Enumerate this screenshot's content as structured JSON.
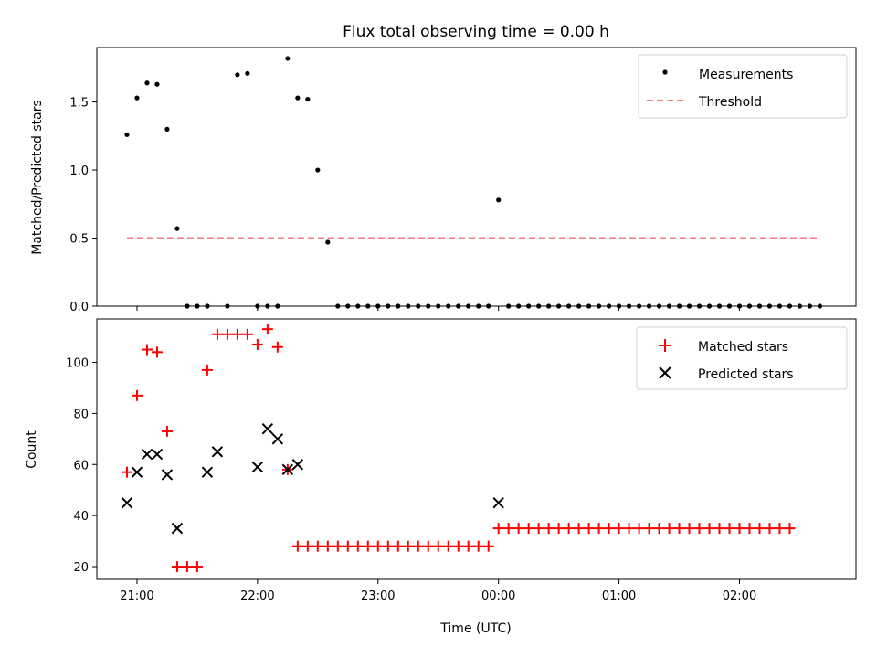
{
  "chart_data": [
    {
      "type": "scatter",
      "title": "Flux total observing time = 0.00 h",
      "ylabel": "Matched/Predicted stars",
      "ylim": [
        0,
        1.9
      ],
      "yticks": [
        0.0,
        0.5,
        1.0,
        1.5
      ],
      "ytick_labels": [
        "0.0",
        "0.5",
        "1.0",
        "1.5"
      ],
      "xlim": [
        "20:40",
        "02:58"
      ],
      "legend_loc": "upper right",
      "series": [
        {
          "name": "Measurements",
          "marker": "dot",
          "color": "#000000",
          "points": [
            [
              "20:55",
              1.26
            ],
            [
              "21:00",
              1.53
            ],
            [
              "21:05",
              1.64
            ],
            [
              "21:10",
              1.63
            ],
            [
              "21:15",
              1.3
            ],
            [
              "21:20",
              0.57
            ],
            [
              "21:25",
              0
            ],
            [
              "21:30",
              0
            ],
            [
              "21:35",
              0
            ],
            [
              "21:45",
              0
            ],
            [
              "21:50",
              1.7
            ],
            [
              "21:55",
              1.71
            ],
            [
              "22:00",
              0
            ],
            [
              "22:05",
              0
            ],
            [
              "22:10",
              0
            ],
            [
              "22:15",
              1.82
            ],
            [
              "22:20",
              1.53
            ],
            [
              "22:25",
              1.52
            ],
            [
              "22:30",
              1.0
            ],
            [
              "22:35",
              0.47
            ],
            [
              "22:40",
              0
            ],
            [
              "22:45",
              0
            ],
            [
              "22:50",
              0
            ],
            [
              "22:55",
              0
            ],
            [
              "23:00",
              0
            ],
            [
              "23:05",
              0
            ],
            [
              "23:10",
              0
            ],
            [
              "23:15",
              0
            ],
            [
              "23:20",
              0
            ],
            [
              "23:25",
              0
            ],
            [
              "23:30",
              0
            ],
            [
              "23:35",
              0
            ],
            [
              "23:40",
              0
            ],
            [
              "23:45",
              0
            ],
            [
              "23:50",
              0
            ],
            [
              "23:55",
              0
            ],
            [
              "00:00",
              0.78
            ],
            [
              "00:05",
              0
            ],
            [
              "00:10",
              0
            ],
            [
              "00:15",
              0
            ],
            [
              "00:20",
              0
            ],
            [
              "00:25",
              0
            ],
            [
              "00:30",
              0
            ],
            [
              "00:35",
              0
            ],
            [
              "00:40",
              0
            ],
            [
              "00:45",
              0
            ],
            [
              "00:50",
              0
            ],
            [
              "00:55",
              0
            ],
            [
              "01:00",
              0
            ],
            [
              "01:05",
              0
            ],
            [
              "01:10",
              0
            ],
            [
              "01:15",
              0
            ],
            [
              "01:20",
              0
            ],
            [
              "01:25",
              0
            ],
            [
              "01:30",
              0
            ],
            [
              "01:35",
              0
            ],
            [
              "01:40",
              0
            ],
            [
              "01:45",
              0
            ],
            [
              "01:50",
              0
            ],
            [
              "01:55",
              0
            ],
            [
              "02:00",
              0
            ],
            [
              "02:05",
              0
            ],
            [
              "02:10",
              0
            ],
            [
              "02:15",
              0
            ],
            [
              "02:20",
              0
            ],
            [
              "02:25",
              0
            ],
            [
              "02:30",
              0
            ],
            [
              "02:35",
              0
            ],
            [
              "02:40",
              0
            ]
          ]
        },
        {
          "name": "Threshold",
          "style": "dashed-line",
          "color": "#f08080",
          "points": [
            [
              "20:55",
              0.5
            ],
            [
              "02:40",
              0.5
            ]
          ]
        }
      ]
    },
    {
      "type": "scatter",
      "xlabel": "Time (UTC)",
      "ylabel": "Count",
      "ylim": [
        15,
        117
      ],
      "yticks": [
        20,
        40,
        60,
        80,
        100
      ],
      "ytick_labels": [
        "20",
        "40",
        "60",
        "80",
        "100"
      ],
      "xlim": [
        "20:40",
        "02:58"
      ],
      "xticks": [
        "21:00",
        "22:00",
        "23:00",
        "00:00",
        "01:00",
        "02:00"
      ],
      "xtick_labels": [
        "21:00",
        "22:00",
        "23:00",
        "00:00",
        "01:00",
        "02:00"
      ],
      "legend_loc": "upper right",
      "series": [
        {
          "name": "Matched stars",
          "marker": "plus",
          "color": "#ff0000",
          "points": [
            [
              "20:55",
              57
            ],
            [
              "21:00",
              87
            ],
            [
              "21:05",
              105
            ],
            [
              "21:10",
              104
            ],
            [
              "21:15",
              73
            ],
            [
              "21:20",
              20
            ],
            [
              "21:25",
              20
            ],
            [
              "21:30",
              20
            ],
            [
              "21:35",
              97
            ],
            [
              "21:40",
              111
            ],
            [
              "21:45",
              111
            ],
            [
              "21:50",
              111
            ],
            [
              "21:55",
              111
            ],
            [
              "22:00",
              107
            ],
            [
              "22:05",
              113
            ],
            [
              "22:10",
              106
            ],
            [
              "22:15",
              58
            ],
            [
              "22:20",
              28
            ],
            [
              "22:25",
              28
            ],
            [
              "22:30",
              28
            ],
            [
              "22:35",
              28
            ],
            [
              "22:40",
              28
            ],
            [
              "22:45",
              28
            ],
            [
              "22:50",
              28
            ],
            [
              "22:55",
              28
            ],
            [
              "23:00",
              28
            ],
            [
              "23:05",
              28
            ],
            [
              "23:10",
              28
            ],
            [
              "23:15",
              28
            ],
            [
              "23:20",
              28
            ],
            [
              "23:25",
              28
            ],
            [
              "23:30",
              28
            ],
            [
              "23:35",
              28
            ],
            [
              "23:40",
              28
            ],
            [
              "23:45",
              28
            ],
            [
              "23:50",
              28
            ],
            [
              "23:55",
              28
            ],
            [
              "00:00",
              35
            ],
            [
              "00:05",
              35
            ],
            [
              "00:10",
              35
            ],
            [
              "00:15",
              35
            ],
            [
              "00:20",
              35
            ],
            [
              "00:25",
              35
            ],
            [
              "00:30",
              35
            ],
            [
              "00:35",
              35
            ],
            [
              "00:40",
              35
            ],
            [
              "00:45",
              35
            ],
            [
              "00:50",
              35
            ],
            [
              "00:55",
              35
            ],
            [
              "01:00",
              35
            ],
            [
              "01:05",
              35
            ],
            [
              "01:10",
              35
            ],
            [
              "01:15",
              35
            ],
            [
              "01:20",
              35
            ],
            [
              "01:25",
              35
            ],
            [
              "01:30",
              35
            ],
            [
              "01:35",
              35
            ],
            [
              "01:40",
              35
            ],
            [
              "01:45",
              35
            ],
            [
              "01:50",
              35
            ],
            [
              "01:55",
              35
            ],
            [
              "02:00",
              35
            ],
            [
              "02:05",
              35
            ],
            [
              "02:10",
              35
            ],
            [
              "02:15",
              35
            ],
            [
              "02:20",
              35
            ],
            [
              "02:25",
              35
            ]
          ]
        },
        {
          "name": "Predicted stars",
          "marker": "x",
          "color": "#000000",
          "points": [
            [
              "20:55",
              45
            ],
            [
              "21:00",
              57
            ],
            [
              "21:05",
              64
            ],
            [
              "21:10",
              64
            ],
            [
              "21:15",
              56
            ],
            [
              "21:20",
              35
            ],
            [
              "21:35",
              57
            ],
            [
              "21:40",
              65
            ],
            [
              "22:00",
              59
            ],
            [
              "22:05",
              74
            ],
            [
              "22:10",
              70
            ],
            [
              "22:15",
              58
            ],
            [
              "22:20",
              60
            ],
            [
              "00:00",
              45
            ]
          ]
        }
      ]
    }
  ]
}
